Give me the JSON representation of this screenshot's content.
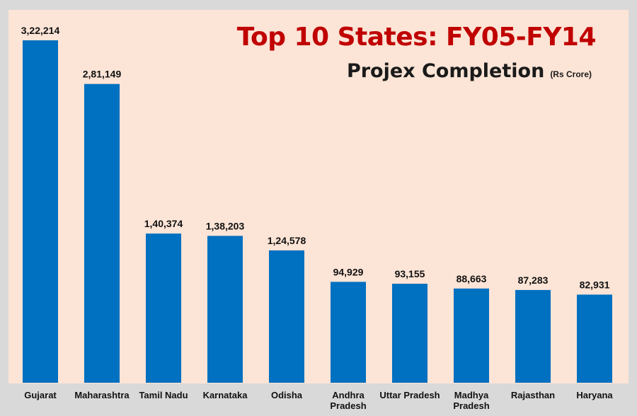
{
  "chart_data": {
    "type": "bar",
    "title": "Top 10 States: FY05-FY14",
    "subtitle": "Projex Completion",
    "unit": "(Rs Crore)",
    "categories": [
      "Gujarat",
      "Maharashtra",
      "Tamil Nadu",
      "Karnataka",
      "Odisha",
      "Andhra Pradesh",
      "Uttar Pradesh",
      "Madhya Pradesh",
      "Rajasthan",
      "Haryana"
    ],
    "category_lines": [
      [
        "Gujarat"
      ],
      [
        "Maharashtra"
      ],
      [
        "Tamil Nadu"
      ],
      [
        "Karnataka"
      ],
      [
        "Odisha"
      ],
      [
        "Andhra",
        "Pradesh"
      ],
      [
        "Uttar Pradesh"
      ],
      [
        "Madhya",
        "Pradesh"
      ],
      [
        "Rajasthan"
      ],
      [
        "Haryana"
      ]
    ],
    "values": [
      322214,
      281149,
      140374,
      138203,
      124578,
      94929,
      93155,
      88663,
      87283,
      82931
    ],
    "value_labels": [
      "3,22,214",
      "2,81,149",
      "1,40,374",
      "1,38,203",
      "1,24,578",
      "94,929",
      "93,155",
      "88,663",
      "87,283",
      "82,931"
    ],
    "ylim": [
      0,
      322214
    ],
    "xlabel": "",
    "ylabel": "",
    "grid": false,
    "legend": "none",
    "colors": {
      "bar": "#0070c0",
      "title": "#c00000",
      "plot_background": "#fce4d6",
      "page_background": "#d9d9d9"
    }
  }
}
